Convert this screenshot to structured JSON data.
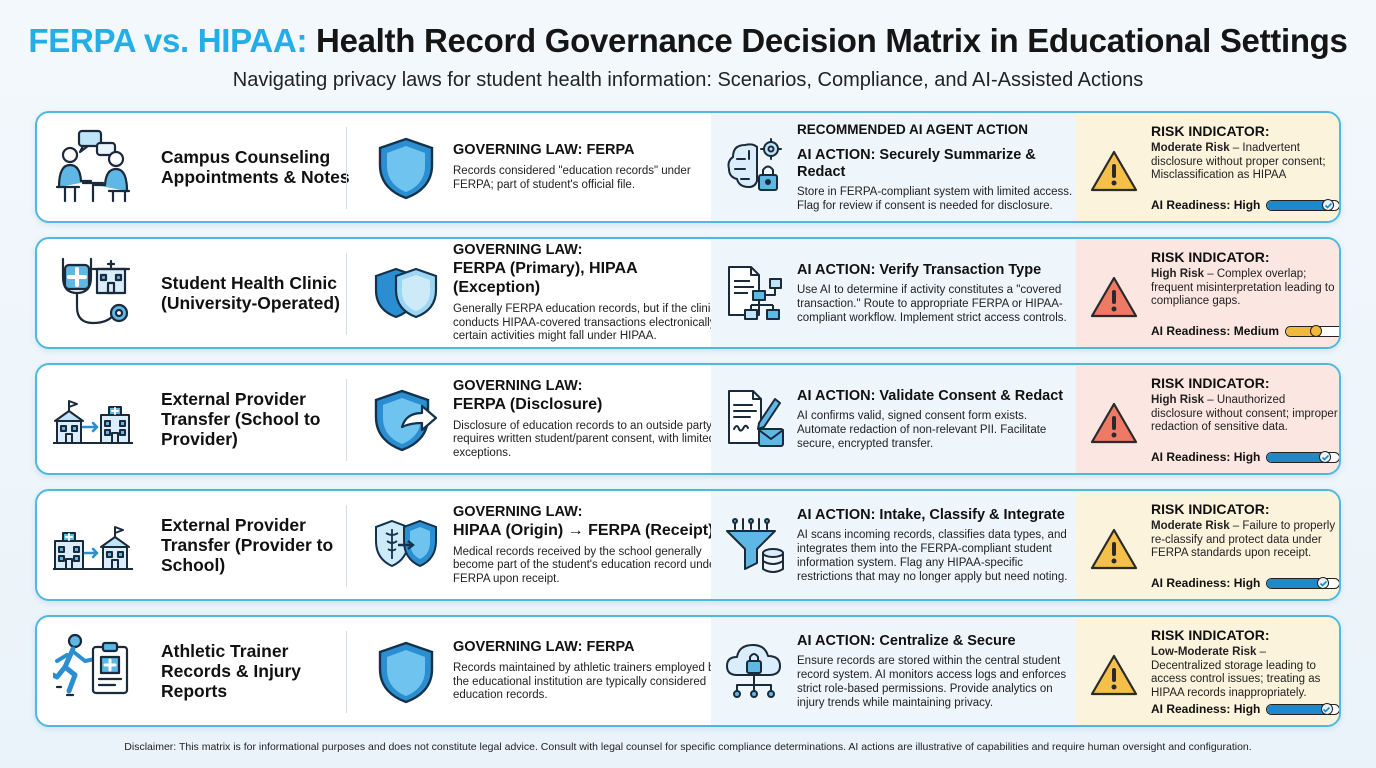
{
  "header": {
    "title_accent": "FERPA vs. HIPAA:",
    "title_rest": "Health Record Governance Decision Matrix in Educational Settings",
    "subtitle": "Navigating privacy laws for student health information: Scenarios, Compliance, and AI-Assisted Actions"
  },
  "columns": {
    "ai_header": "RECOMMENDED AI AGENT ACTION"
  },
  "colors": {
    "accent": "#22aee6",
    "row_border": "#4fb8df",
    "icon_blue": "#1e88c9",
    "moderate_bg": "#fbf3dc",
    "high_bg": "#fbe6e1",
    "warn_moderate": "#f5c04a",
    "warn_high": "#ee7a66"
  },
  "rows": [
    {
      "scenario": "Campus Counseling Appointments & Notes",
      "scenario_icon": "counseling-session-icon",
      "law_label": "GOVERNING LAW: FERPA",
      "law_name": "",
      "law_icon": "shield-icon",
      "law_desc": "Records considered \"education records\" under FERPA; part of student's official file.",
      "ai_icon": "ai-brain-lock-icon",
      "ai_title": "AI ACTION: Securely Summarize & Redact",
      "ai_desc": "Store in FERPA-compliant system with limited access. Flag for review if consent is needed for disclosure.",
      "risk_label": "RISK INDICATOR:",
      "risk_level": "Moderate Risk",
      "risk_desc": " – Inadvertent disclosure without proper consent; Misclassification as HIPAA",
      "readiness_label": "AI Readiness:",
      "readiness": "High",
      "readiness_fraction": 0.92,
      "risk_type": "moderate"
    },
    {
      "scenario": "Student Health Clinic (University-Operated)",
      "scenario_icon": "stethoscope-clinic-icon",
      "law_label": "GOVERNING LAW:",
      "law_name": "FERPA (Primary), HIPAA (Exception)",
      "law_icon": "double-shield-icon",
      "law_desc": "Generally FERPA education records, but if the clinic conducts HIPAA-covered transactions electronically, certain activities might fall under HIPAA.",
      "ai_icon": "document-flowchart-icon",
      "ai_title": "AI ACTION: Verify Transaction Type",
      "ai_desc": "Use AI to determine if activity constitutes a \"covered transaction.\" Route to appropriate FERPA or HIPAA-compliant workflow. Implement strict access controls.",
      "risk_label": "RISK INDICATOR:",
      "risk_level": "High Risk",
      "risk_desc": " – Complex overlap; frequent misinterpretation leading to compliance gaps.",
      "readiness_label": "AI Readiness:",
      "readiness": "Medium",
      "readiness_fraction": 0.5,
      "risk_type": "high"
    },
    {
      "scenario": "External Provider Transfer (School to Provider)",
      "scenario_icon": "school-to-hospital-icon",
      "law_label": "GOVERNING LAW:",
      "law_name": "FERPA (Disclosure)",
      "law_icon": "shield-arrow-icon",
      "law_desc": "Disclosure of education records to an outside party requires written student/parent consent, with limited exceptions.",
      "ai_icon": "signed-form-envelope-icon",
      "ai_title": "AI ACTION: Validate Consent & Redact",
      "ai_desc": "AI confirms valid, signed consent form exists. Automate redaction of non-relevant PII. Facilitate secure, encrypted transfer.",
      "risk_label": "RISK INDICATOR:",
      "risk_level": "High Risk",
      "risk_desc": " – Unauthorized disclosure without consent; improper redaction of sensitive data.",
      "readiness_label": "AI Readiness:",
      "readiness": "High",
      "readiness_fraction": 0.88,
      "risk_type": "high"
    },
    {
      "scenario": "External Provider Transfer (Provider to School)",
      "scenario_icon": "hospital-to-school-icon",
      "law_label": "GOVERNING LAW:",
      "law_name": "HIPAA (Origin) → FERPA (Receipt)",
      "law_icon": "caduceus-shield-transfer-icon",
      "law_desc": "Medical records received by the school generally become part of the student's education record under FERPA upon receipt.",
      "ai_icon": "funnel-database-icon",
      "ai_title": "AI ACTION: Intake, Classify & Integrate",
      "ai_desc": "AI scans incoming records, classifies data types, and integrates them into the FERPA-compliant student information system. Flag any HIPAA-specific restrictions that may no longer apply but need noting.",
      "risk_label": "RISK INDICATOR:",
      "risk_level": "Moderate Risk",
      "risk_desc": " – Failure to properly re-classify and protect data under FERPA standards upon receipt.",
      "readiness_label": "AI Readiness:",
      "readiness": "High",
      "readiness_fraction": 0.85,
      "risk_type": "moderate"
    },
    {
      "scenario": "Athletic Trainer Records & Injury Reports",
      "scenario_icon": "runner-clipboard-icon",
      "law_label": "GOVERNING LAW: FERPA",
      "law_name": "",
      "law_icon": "shield-icon",
      "law_desc": "Records maintained by athletic trainers employed by the educational institution are typically considered education records.",
      "ai_icon": "cloud-lock-network-icon",
      "ai_title": "AI ACTION: Centralize & Secure",
      "ai_desc": "Ensure records are stored within the central student record system. AI monitors access logs and enforces strict role-based permissions. Provide analytics on injury trends while maintaining privacy.",
      "risk_label": "RISK INDICATOR:",
      "risk_level": "Low-Moderate Risk",
      "risk_desc": " – Decentralized storage leading to access control issues; treating as HIPAA records inappropriately.",
      "readiness_label": "AI Readiness:",
      "readiness": "High",
      "readiness_fraction": 0.9,
      "risk_type": "moderate"
    }
  ],
  "footer": {
    "disclaimer": "Disclaimer: This matrix is for informational purposes and does not constitute legal advice. Consult with legal counsel for specific compliance determinations. AI actions are illustrative of capabilities and require human oversight and configuration."
  }
}
